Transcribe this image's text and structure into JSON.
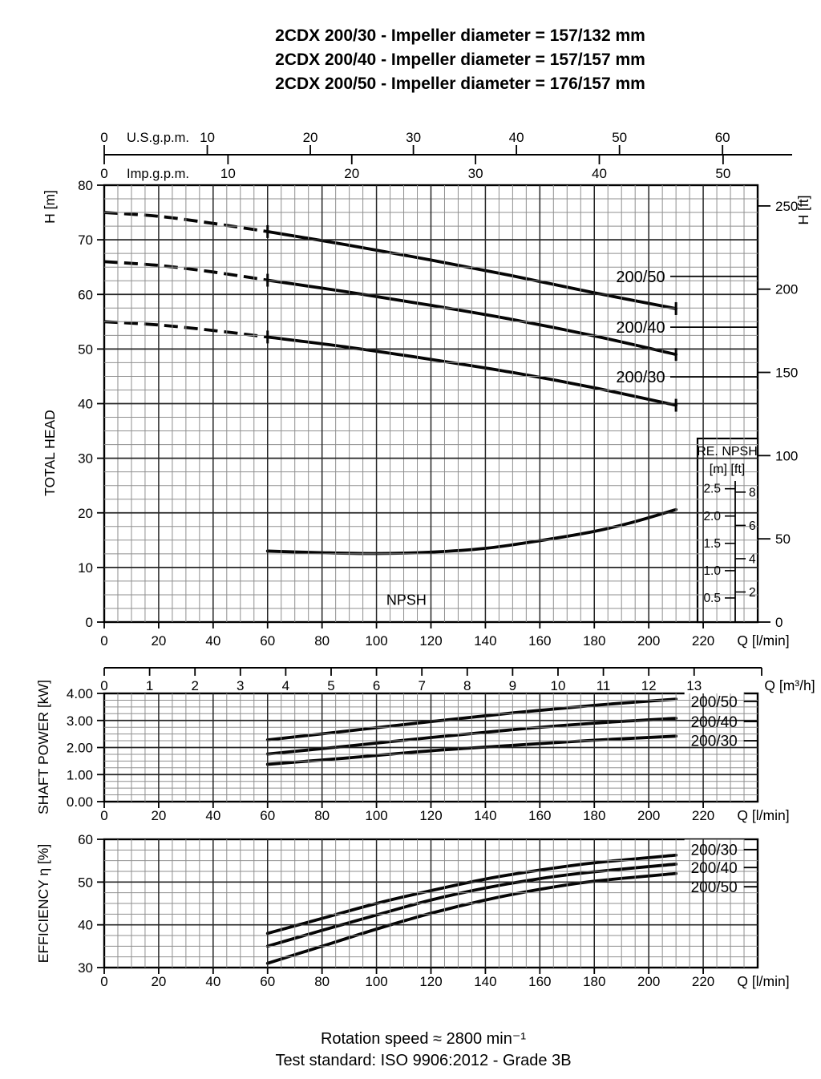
{
  "title": {
    "lines": [
      "2CDX 200/30 - Impeller diameter = 157/132 mm",
      "2CDX 200/40 - Impeller diameter = 157/157 mm",
      "2CDX 200/50 - Impeller diameter = 176/157 mm"
    ]
  },
  "footer": {
    "lines": [
      "Rotation speed ≈ 2800 min⁻¹",
      "Test standard: ISO 9906:2012 - Grade 3B"
    ]
  },
  "colors": {
    "ink": "#000000",
    "grid_minor": "#8f8f8f",
    "grid_major": "#262626",
    "curve": "#050505",
    "background": "#ffffff"
  },
  "chart_data": [
    {
      "id": "total_head",
      "type": "line",
      "title": "",
      "xlabel": "Q [l/min]",
      "x2label": "Q [m³/h]",
      "ylabel_parts": [
        "H [m]",
        "TOTAL HEAD"
      ],
      "y2label": "H [ft]",
      "xlim": [
        0,
        240
      ],
      "ylim": [
        0,
        80
      ],
      "grid": "on",
      "x_ticks": [
        0,
        20,
        40,
        60,
        80,
        100,
        120,
        140,
        160,
        180,
        200,
        220
      ],
      "x_minor_step": 5,
      "y_ticks": [
        0,
        10,
        20,
        30,
        40,
        50,
        60,
        70,
        80
      ],
      "y_minor_step": 2.5,
      "y2_ft_ticks": [
        0,
        50,
        100,
        150,
        200,
        250
      ],
      "x2_m3h_ticks": [
        0,
        1,
        2,
        3,
        4,
        5,
        6,
        7,
        8,
        9,
        10,
        11,
        12,
        13
      ],
      "top_scales": [
        {
          "label": "U.S.g.p.m.",
          "ticks": [
            0,
            10,
            20,
            30,
            40,
            50,
            60
          ],
          "lpm_per_unit": 3.785,
          "side": "above"
        },
        {
          "label": "Imp.g.p.m.",
          "ticks": [
            0,
            10,
            20,
            30,
            40,
            50
          ],
          "lpm_per_unit": 4.546,
          "side": "below"
        }
      ],
      "series": [
        {
          "name": "200/50",
          "dash_until": 60,
          "end_tick": true,
          "points": [
            [
              0,
              75
            ],
            [
              20,
              74.3
            ],
            [
              40,
              73.0
            ],
            [
              60,
              71.5
            ],
            [
              90,
              69.0
            ],
            [
              120,
              66.3
            ],
            [
              150,
              63.4
            ],
            [
              180,
              60.3
            ],
            [
              210,
              57.4
            ]
          ]
        },
        {
          "name": "200/40",
          "dash_until": 60,
          "end_tick": true,
          "points": [
            [
              0,
              66
            ],
            [
              20,
              65.3
            ],
            [
              40,
              64.1
            ],
            [
              60,
              62.6
            ],
            [
              90,
              60.4
            ],
            [
              120,
              58.0
            ],
            [
              150,
              55.4
            ],
            [
              180,
              52.4
            ],
            [
              210,
              49.0
            ]
          ]
        },
        {
          "name": "200/30",
          "dash_until": 60,
          "end_tick": true,
          "points": [
            [
              0,
              55
            ],
            [
              20,
              54.4
            ],
            [
              40,
              53.4
            ],
            [
              60,
              52.2
            ],
            [
              90,
              50.3
            ],
            [
              120,
              48.1
            ],
            [
              150,
              45.7
            ],
            [
              180,
              42.9
            ],
            [
              210,
              39.7
            ]
          ]
        },
        {
          "name": "NPSH",
          "dash_until": null,
          "end_tick": false,
          "points": [
            [
              60,
              13.0
            ],
            [
              80,
              12.7
            ],
            [
              100,
              12.55
            ],
            [
              120,
              12.8
            ],
            [
              140,
              13.5
            ],
            [
              160,
              14.9
            ],
            [
              180,
              16.6
            ],
            [
              195,
              18.4
            ],
            [
              210,
              20.6
            ]
          ]
        }
      ],
      "curve_labels": [
        {
          "text": "200/50",
          "q": 197,
          "v": 63.3,
          "leader": true
        },
        {
          "text": "200/40",
          "q": 197,
          "v": 54.0,
          "leader": true
        },
        {
          "text": "200/30",
          "q": 197,
          "v": 44.9,
          "leader": true
        },
        {
          "text": "NPSH",
          "q": 111,
          "v": 4.1,
          "leader": false
        }
      ],
      "npsh_inset": {
        "title": "RE. NPSH",
        "unit_labels": "[m] [ft]",
        "m_ticks": [
          {
            "v": 2.5,
            "label": "2.5"
          },
          {
            "v": 2.0,
            "label": "2.0"
          },
          {
            "v": 1.5,
            "label": "1.5"
          },
          {
            "v": 1.0,
            "label": "1.0"
          },
          {
            "v": 0.5,
            "label": "0.5"
          }
        ],
        "ft_ticks": [
          8,
          6,
          4,
          2
        ]
      }
    },
    {
      "id": "shaft_power",
      "type": "line",
      "title": "",
      "xlabel": "Q [l/min]",
      "ylabel": "SHAFT POWER  [kW]",
      "xlim": [
        0,
        240
      ],
      "ylim": [
        0,
        4
      ],
      "grid": "on",
      "x_ticks": [
        0,
        20,
        40,
        60,
        80,
        100,
        120,
        140,
        160,
        180,
        200,
        220
      ],
      "x_minor_step": 5,
      "y_ticks": [
        0,
        1,
        2,
        3,
        4
      ],
      "y_tick_labels": [
        "0.00",
        "1.00",
        "2.00",
        "3.00",
        "4.00"
      ],
      "y_minor_step": 0.25,
      "series": [
        {
          "name": "200/50",
          "points": [
            [
              60,
              2.28
            ],
            [
              90,
              2.62
            ],
            [
              120,
              2.96
            ],
            [
              150,
              3.28
            ],
            [
              180,
              3.56
            ],
            [
              210,
              3.79
            ]
          ]
        },
        {
          "name": "200/40",
          "points": [
            [
              60,
              1.76
            ],
            [
              90,
              2.06
            ],
            [
              120,
              2.37
            ],
            [
              150,
              2.66
            ],
            [
              180,
              2.9
            ],
            [
              210,
              3.08
            ]
          ]
        },
        {
          "name": "200/30",
          "points": [
            [
              60,
              1.38
            ],
            [
              90,
              1.62
            ],
            [
              120,
              1.88
            ],
            [
              150,
              2.08
            ],
            [
              180,
              2.27
            ],
            [
              210,
              2.42
            ]
          ]
        }
      ],
      "curve_labels": [
        {
          "text": "200/50",
          "q": 224,
          "v": 3.7,
          "leader": true
        },
        {
          "text": "200/40",
          "q": 224,
          "v": 2.96,
          "leader": true
        },
        {
          "text": "200/30",
          "q": 224,
          "v": 2.25,
          "leader": true
        }
      ]
    },
    {
      "id": "efficiency",
      "type": "line",
      "title": "",
      "xlabel": "Q [l/min]",
      "ylabel": "EFFICIENCY   η [%]",
      "xlim": [
        0,
        240
      ],
      "ylim": [
        30,
        60
      ],
      "grid": "on",
      "x_ticks": [
        0,
        20,
        40,
        60,
        80,
        100,
        120,
        140,
        160,
        180,
        200,
        220
      ],
      "x_minor_step": 5,
      "y_ticks": [
        30,
        40,
        50,
        60
      ],
      "y_minor_step": 2.5,
      "series": [
        {
          "name": "200/30",
          "points": [
            [
              60,
              38.0
            ],
            [
              80,
              41.5
            ],
            [
              100,
              45.0
            ],
            [
              120,
              48.0
            ],
            [
              140,
              50.7
            ],
            [
              160,
              52.8
            ],
            [
              180,
              54.5
            ],
            [
              210,
              56.3
            ]
          ]
        },
        {
          "name": "200/40",
          "points": [
            [
              60,
              35.0
            ],
            [
              80,
              38.7
            ],
            [
              100,
              42.3
            ],
            [
              120,
              45.8
            ],
            [
              140,
              48.6
            ],
            [
              160,
              50.8
            ],
            [
              180,
              52.4
            ],
            [
              210,
              54.2
            ]
          ]
        },
        {
          "name": "200/50",
          "points": [
            [
              60,
              31.0
            ],
            [
              80,
              35.0
            ],
            [
              100,
              39.0
            ],
            [
              120,
              42.7
            ],
            [
              140,
              45.8
            ],
            [
              160,
              48.3
            ],
            [
              180,
              50.2
            ],
            [
              210,
              52.0
            ]
          ]
        }
      ],
      "curve_labels": [
        {
          "text": "200/30",
          "q": 224,
          "v": 57.6,
          "leader": true
        },
        {
          "text": "200/40",
          "q": 224,
          "v": 53.4,
          "leader": true
        },
        {
          "text": "200/50",
          "q": 224,
          "v": 48.9,
          "leader": true
        }
      ]
    }
  ]
}
